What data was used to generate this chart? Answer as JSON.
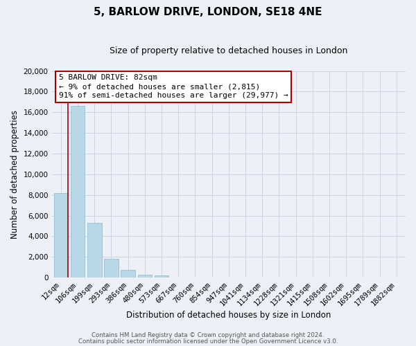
{
  "title": "5, BARLOW DRIVE, LONDON, SE18 4NE",
  "subtitle": "Size of property relative to detached houses in London",
  "xlabel": "Distribution of detached houses by size in London",
  "ylabel": "Number of detached properties",
  "bar_labels": [
    "12sqm",
    "106sqm",
    "199sqm",
    "293sqm",
    "386sqm",
    "480sqm",
    "573sqm",
    "667sqm",
    "760sqm",
    "854sqm",
    "947sqm",
    "1041sqm",
    "1134sqm",
    "1228sqm",
    "1321sqm",
    "1415sqm",
    "1508sqm",
    "1602sqm",
    "1695sqm",
    "1789sqm",
    "1882sqm"
  ],
  "bar_values": [
    8200,
    16600,
    5300,
    1800,
    750,
    280,
    200,
    0,
    0,
    0,
    0,
    0,
    0,
    0,
    0,
    0,
    0,
    0,
    0,
    0,
    0
  ],
  "bar_color": "#b8d8e8",
  "bar_edge_color": "#8ab8d0",
  "ylim": [
    0,
    20000
  ],
  "yticks": [
    0,
    2000,
    4000,
    6000,
    8000,
    10000,
    12000,
    14000,
    16000,
    18000,
    20000
  ],
  "annotation_title": "5 BARLOW DRIVE: 82sqm",
  "annotation_line1": "← 9% of detached houses are smaller (2,815)",
  "annotation_line2": "91% of semi-detached houses are larger (29,977) →",
  "annotation_box_facecolor": "#ffffff",
  "annotation_box_edgecolor": "#aa0000",
  "vertical_line_color": "#aa0000",
  "vertical_line_x": 0.43,
  "footer1": "Contains HM Land Registry data © Crown copyright and database right 2024.",
  "footer2": "Contains public sector information licensed under the Open Government Licence v3.0.",
  "grid_color": "#c8d4e4",
  "background_color": "#edf1f7",
  "title_fontsize": 11,
  "subtitle_fontsize": 9,
  "tick_fontsize": 7.5,
  "ylabel_fontsize": 8.5,
  "xlabel_fontsize": 8.5,
  "footer_fontsize": 6.2
}
